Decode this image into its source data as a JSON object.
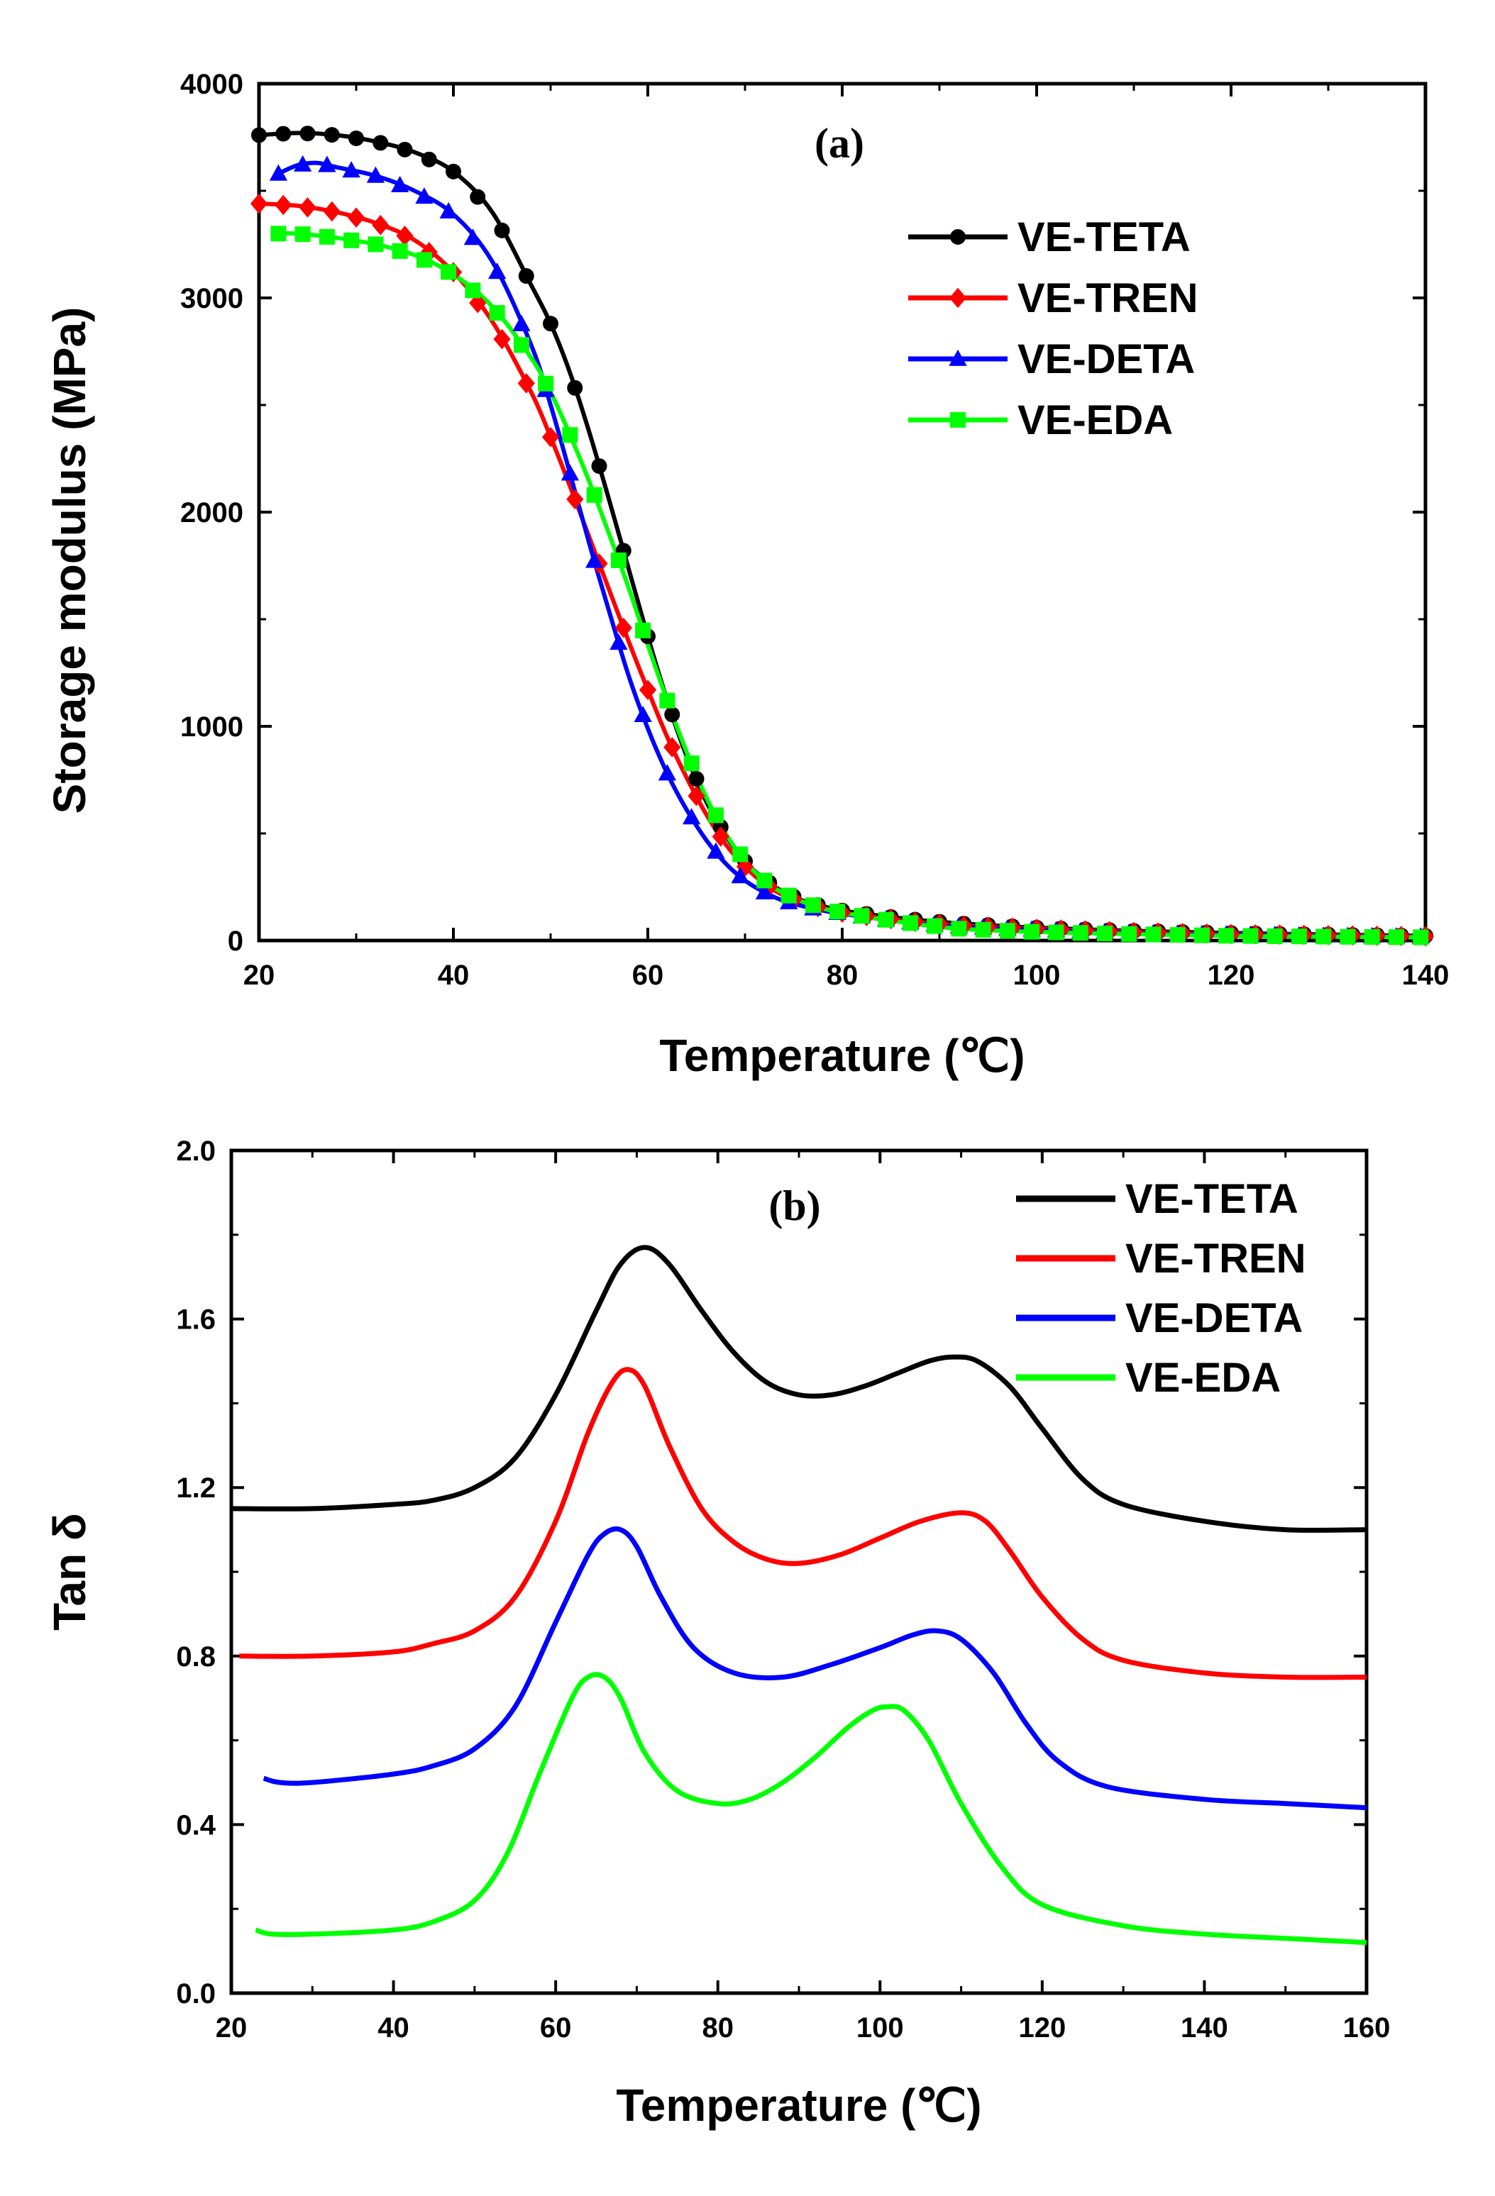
{
  "chart_data": [
    {
      "type": "line",
      "panel_label": "(a)",
      "xlabel": "Temperature (℃)",
      "ylabel": "Storage modulus (MPa)",
      "xlim": [
        20,
        140
      ],
      "ylim": [
        0,
        4000
      ],
      "xticks": [
        "20",
        "40",
        "60",
        "80",
        "100",
        "120",
        "140"
      ],
      "yticks": [
        "0",
        "1000",
        "2000",
        "3000",
        "4000"
      ],
      "legend_position": "top-right",
      "series": [
        {
          "name": "VE-TETA",
          "color": "#000000",
          "marker": "circle",
          "x": [
            20,
            24,
            28,
            32,
            36,
            40,
            44,
            48,
            50,
            52,
            54,
            56,
            58,
            60,
            62,
            64,
            66,
            68,
            70,
            72,
            74,
            76,
            78,
            80,
            84,
            88,
            92,
            100,
            110,
            120,
            130,
            140
          ],
          "y": [
            3760,
            3770,
            3760,
            3730,
            3680,
            3590,
            3400,
            3060,
            2880,
            2650,
            2370,
            2060,
            1740,
            1420,
            1120,
            860,
            650,
            490,
            370,
            285,
            225,
            185,
            160,
            140,
            115,
            95,
            80,
            60,
            45,
            35,
            28,
            22
          ]
        },
        {
          "name": "VE-TREN",
          "color": "#ff0000",
          "marker": "diamond",
          "x": [
            20,
            24,
            28,
            32,
            36,
            40,
            44,
            48,
            50,
            52,
            54,
            56,
            58,
            60,
            62,
            64,
            66,
            68,
            70,
            72,
            74,
            76,
            78,
            80,
            84,
            88,
            92,
            100,
            110,
            120,
            130,
            140
          ],
          "y": [
            3440,
            3430,
            3400,
            3350,
            3270,
            3120,
            2890,
            2560,
            2350,
            2120,
            1880,
            1640,
            1400,
            1170,
            950,
            760,
            590,
            450,
            345,
            265,
            210,
            175,
            150,
            130,
            105,
            85,
            70,
            55,
            40,
            30,
            25,
            20
          ]
        },
        {
          "name": "VE-DETA",
          "color": "#0000ff",
          "marker": "triangle",
          "x": [
            22,
            24,
            26,
            28,
            32,
            36,
            40,
            44,
            48,
            50,
            52,
            54,
            56,
            58,
            60,
            62,
            64,
            66,
            68,
            70,
            72,
            74,
            76,
            78,
            80,
            84,
            88,
            92,
            100,
            110,
            120,
            130,
            140
          ],
          "y": [
            3580,
            3620,
            3630,
            3610,
            3570,
            3500,
            3390,
            3170,
            2780,
            2500,
            2180,
            1850,
            1540,
            1240,
            990,
            780,
            610,
            470,
            360,
            280,
            225,
            185,
            160,
            140,
            125,
            100,
            80,
            65,
            50,
            35,
            28,
            22,
            18
          ]
        },
        {
          "name": "VE-EDA",
          "color": "#00ff00",
          "marker": "square",
          "x": [
            22,
            24,
            28,
            32,
            36,
            40,
            44,
            48,
            50,
            52,
            54,
            56,
            58,
            60,
            62,
            64,
            66,
            68,
            70,
            72,
            74,
            76,
            78,
            80,
            84,
            88,
            92,
            100,
            110,
            120,
            130,
            140
          ],
          "y": [
            3300,
            3300,
            3280,
            3250,
            3200,
            3110,
            2960,
            2720,
            2560,
            2360,
            2140,
            1900,
            1650,
            1380,
            1120,
            880,
            670,
            500,
            370,
            280,
            220,
            180,
            150,
            130,
            100,
            75,
            55,
            40,
            30,
            22,
            18,
            15
          ]
        }
      ]
    },
    {
      "type": "line",
      "panel_label": "(b)",
      "xlabel": "Temperature (℃)",
      "ylabel": "Tan δ",
      "xlim": [
        20,
        160
      ],
      "ylim": [
        0.0,
        2.0
      ],
      "xticks": [
        "20",
        "40",
        "60",
        "80",
        "100",
        "120",
        "140",
        "160"
      ],
      "yticks": [
        "0.0",
        "0.4",
        "0.8",
        "1.2",
        "1.6",
        "2.0"
      ],
      "legend_position": "top-right",
      "series": [
        {
          "name": "VE-TETA",
          "color": "#000000",
          "x": [
            20,
            30,
            40,
            45,
            50,
            55,
            60,
            65,
            68,
            71,
            74,
            78,
            82,
            86,
            90,
            94,
            98,
            102,
            106,
            109,
            112,
            116,
            120,
            125,
            130,
            140,
            150,
            160
          ],
          "y": [
            1.15,
            1.15,
            1.16,
            1.17,
            1.2,
            1.27,
            1.42,
            1.62,
            1.73,
            1.77,
            1.73,
            1.62,
            1.52,
            1.45,
            1.42,
            1.42,
            1.44,
            1.47,
            1.5,
            1.51,
            1.5,
            1.44,
            1.34,
            1.22,
            1.16,
            1.12,
            1.1,
            1.1
          ]
        },
        {
          "name": "VE-TREN",
          "color": "#ff0000",
          "x": [
            21,
            30,
            40,
            45,
            50,
            55,
            60,
            64,
            67,
            69,
            71,
            74,
            78,
            82,
            86,
            90,
            95,
            100,
            105,
            110,
            113,
            116,
            120,
            125,
            130,
            140,
            150,
            160
          ],
          "y": [
            0.8,
            0.8,
            0.81,
            0.83,
            0.86,
            0.94,
            1.12,
            1.33,
            1.45,
            1.48,
            1.44,
            1.3,
            1.15,
            1.07,
            1.03,
            1.02,
            1.04,
            1.08,
            1.12,
            1.14,
            1.12,
            1.05,
            0.94,
            0.84,
            0.79,
            0.76,
            0.75,
            0.75
          ]
        },
        {
          "name": "VE-DETA",
          "color": "#0000ff",
          "x": [
            24,
            26,
            30,
            40,
            45,
            50,
            55,
            60,
            64,
            66,
            68,
            70,
            73,
            77,
            82,
            88,
            94,
            100,
            104,
            107,
            110,
            114,
            118,
            122,
            128,
            140,
            150,
            160
          ],
          "y": [
            0.51,
            0.5,
            0.5,
            0.52,
            0.54,
            0.58,
            0.68,
            0.88,
            1.04,
            1.09,
            1.1,
            1.06,
            0.94,
            0.82,
            0.76,
            0.75,
            0.78,
            0.82,
            0.85,
            0.86,
            0.84,
            0.76,
            0.64,
            0.55,
            0.49,
            0.46,
            0.45,
            0.44
          ]
        },
        {
          "name": "VE-EDA",
          "color": "#00ff00",
          "x": [
            23,
            25,
            30,
            40,
            45,
            50,
            54,
            58,
            62,
            64,
            66,
            68,
            71,
            75,
            80,
            84,
            88,
            92,
            96,
            99,
            101,
            103,
            106,
            110,
            115,
            120,
            130,
            140,
            150,
            160
          ],
          "y": [
            0.15,
            0.14,
            0.14,
            0.15,
            0.17,
            0.22,
            0.33,
            0.52,
            0.7,
            0.75,
            0.75,
            0.7,
            0.57,
            0.48,
            0.45,
            0.46,
            0.5,
            0.56,
            0.63,
            0.67,
            0.68,
            0.67,
            0.6,
            0.45,
            0.3,
            0.21,
            0.16,
            0.14,
            0.13,
            0.12
          ]
        }
      ]
    }
  ]
}
